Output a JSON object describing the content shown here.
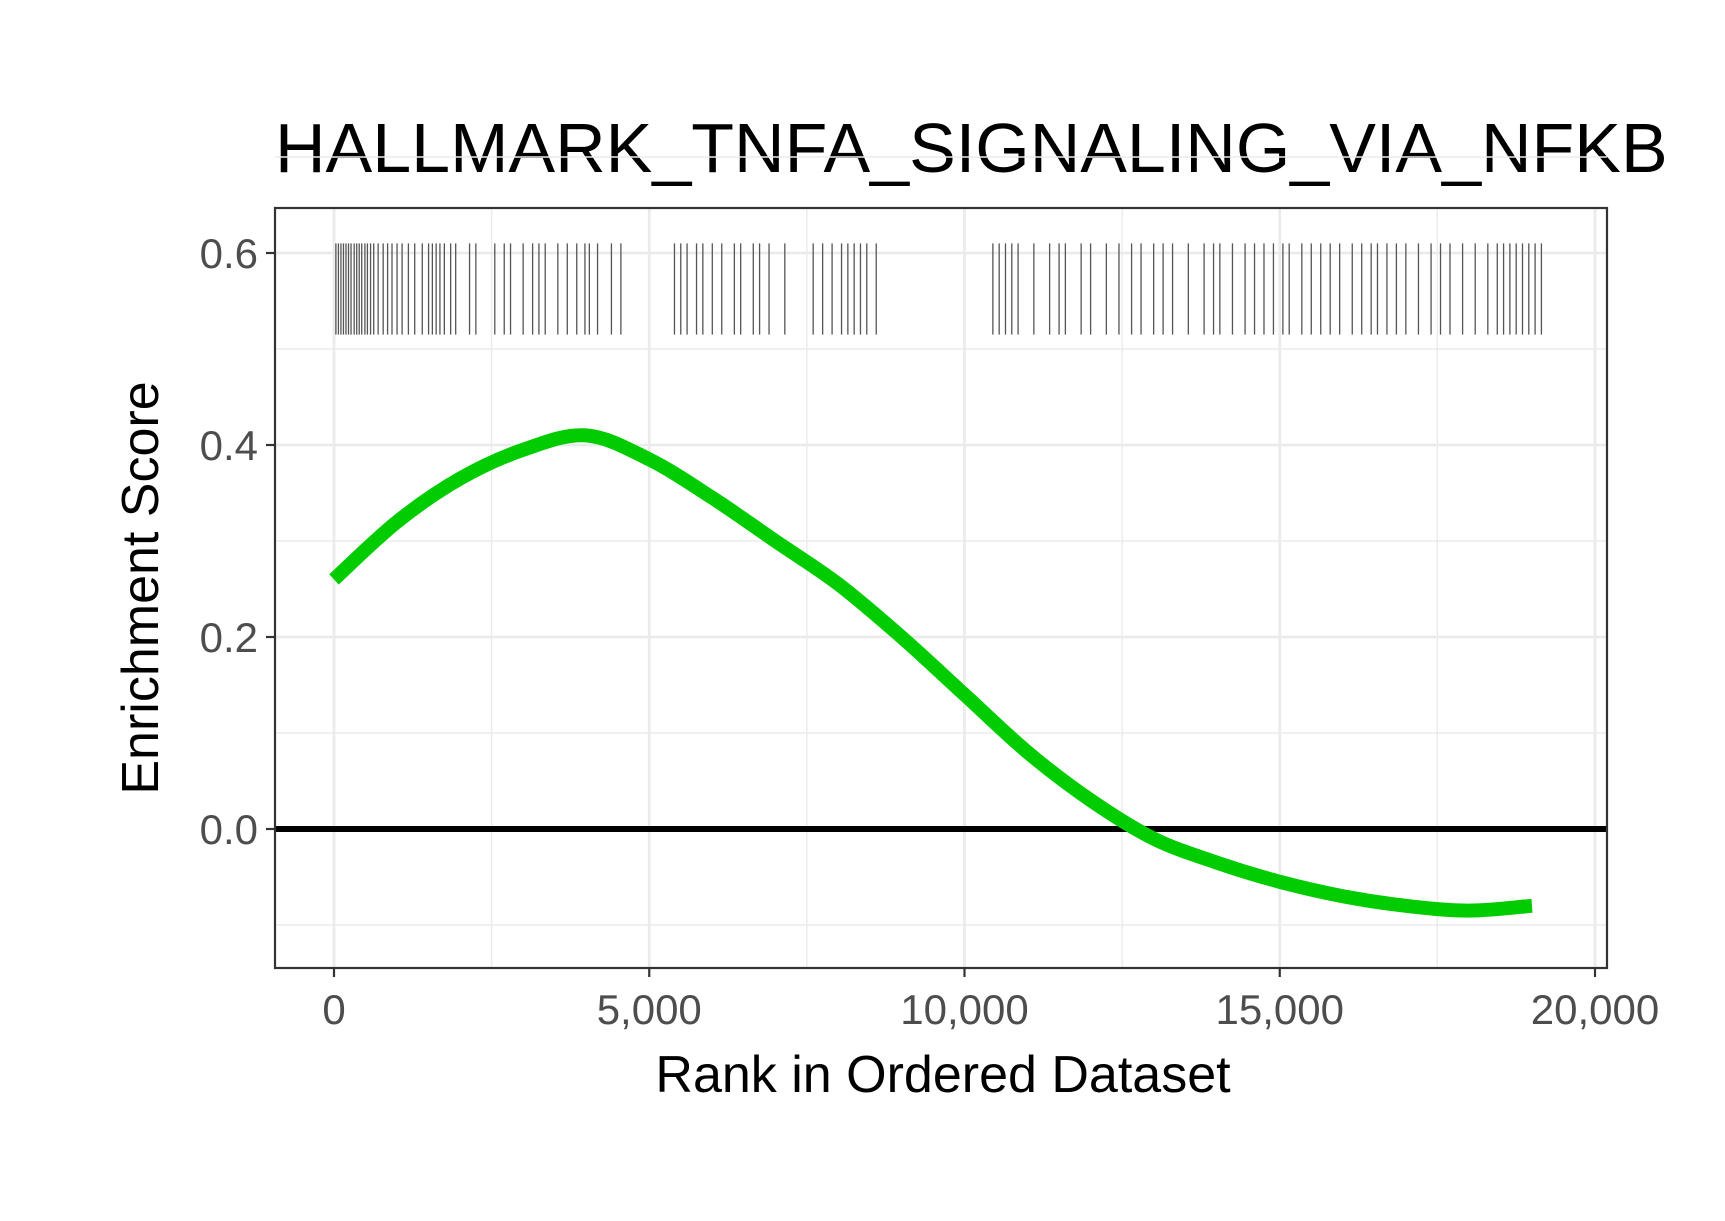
{
  "chart_data": {
    "type": "line",
    "title": "HALLMARK_TNFA_SIGNALING_VIA_NFKB",
    "xlabel": "Rank in Ordered Dataset",
    "ylabel": "Enrichment Score",
    "xlim": [
      -1900,
      40500
    ],
    "ylim": [
      -0.145,
      0.645
    ],
    "x_ticks": [
      0,
      5000,
      10000,
      15000,
      20000
    ],
    "x_tick_labels": [
      "0",
      "5,000",
      "10,000",
      "15,000",
      "20,000"
    ],
    "y_ticks": [
      0.0,
      0.2,
      0.4,
      0.6
    ],
    "y_tick_labels": [
      "0.0",
      "0.2",
      "0.4",
      "0.6"
    ],
    "grid": true,
    "zero_line": 0,
    "line_color": "#00cc00",
    "series": [
      {
        "x": [
          0,
          1000,
          2000,
          3000,
          4000,
          5000,
          6000,
          7000,
          8000,
          9000,
          10000,
          11000,
          12000,
          13000,
          14000,
          15000,
          16000,
          17000,
          18000,
          19000
        ],
        "values": [
          0.26,
          0.32,
          0.365,
          0.395,
          0.41,
          0.385,
          0.345,
          0.3,
          0.255,
          0.2,
          0.14,
          0.08,
          0.03,
          -0.01,
          -0.035,
          -0.055,
          -0.07,
          -0.08,
          -0.085,
          -0.08
        ]
      }
    ],
    "hits": [
      30,
      70,
      110,
      150,
      190,
      230,
      270,
      320,
      360,
      400,
      440,
      490,
      530,
      580,
      630,
      700,
      780,
      850,
      920,
      1000,
      1080,
      1180,
      1280,
      1400,
      1500,
      1560,
      1620,
      1680,
      1750,
      1850,
      1930,
      2150,
      2250,
      2550,
      2700,
      2800,
      3000,
      3150,
      3250,
      3350,
      3550,
      3700,
      3850,
      3980,
      4050,
      4180,
      4400,
      4550,
      5400,
      5500,
      5600,
      5750,
      5850,
      6000,
      6150,
      6350,
      6450,
      6650,
      6750,
      6900,
      7150,
      7600,
      7750,
      7900,
      8050,
      8150,
      8250,
      8350,
      8450,
      8600,
      10450,
      10550,
      10650,
      10750,
      10850,
      11100,
      11350,
      11500,
      11600,
      11850,
      12000,
      12250,
      12450,
      12650,
      12800,
      13000,
      13150,
      13300,
      13550,
      13800,
      13950,
      14050,
      14250,
      14450,
      14600,
      14750,
      14900,
      15050,
      15150,
      15350,
      15500,
      15650,
      15800,
      15950,
      16150,
      16300,
      16450,
      16550,
      16700,
      16850,
      17000,
      17200,
      17400,
      17550,
      17700,
      17900,
      18100,
      18300,
      18450,
      18550,
      18650,
      18750,
      18850,
      18950,
      19050,
      19150
    ],
    "hit_band": [
      0.515,
      0.61
    ]
  }
}
